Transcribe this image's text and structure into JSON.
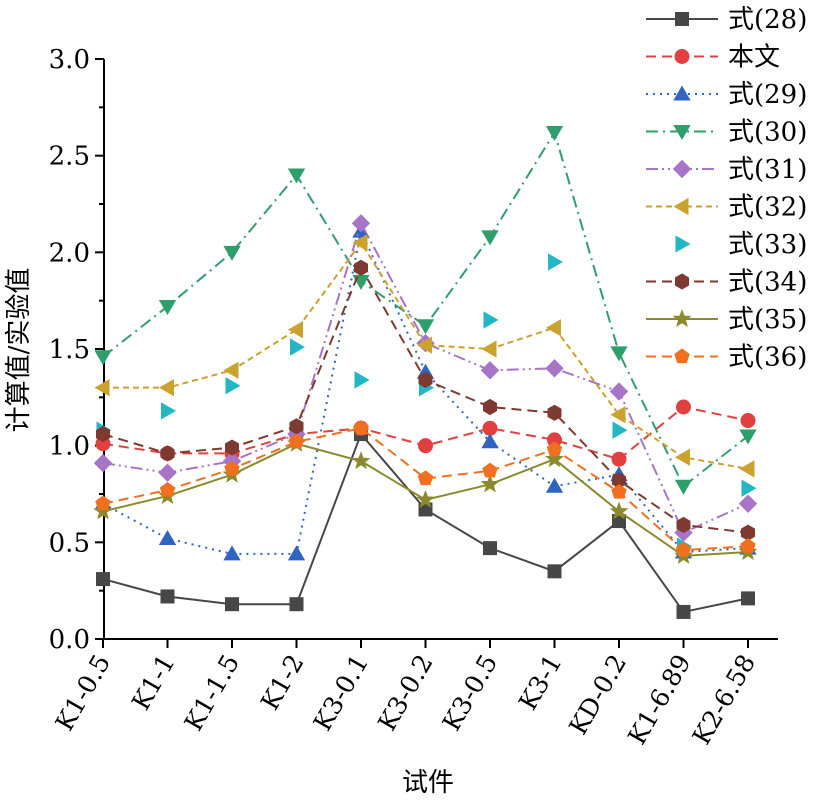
{
  "chart_data": {
    "type": "line",
    "xlabel": "试件",
    "ylabel": "计算值/实验值",
    "ylim": [
      0,
      3.0
    ],
    "yticks": [
      "0.0",
      "0.5",
      "1.0",
      "1.5",
      "2.0",
      "2.5",
      "3.0"
    ],
    "grid": false,
    "legend_position": "top-right",
    "categories": [
      "K1-0.5",
      "K1-1",
      "K1-1.5",
      "K1-2",
      "K3-0.1",
      "K3-0.2",
      "K3-0.5",
      "K3-1",
      "KD-0.2",
      "K1-6.89",
      "K2-6.58"
    ],
    "series": [
      {
        "name": "式(28)",
        "color": "#474747",
        "marker": "square",
        "line": "solid",
        "values": [
          0.31,
          0.22,
          0.18,
          0.18,
          1.06,
          0.67,
          0.47,
          0.35,
          0.61,
          0.14,
          0.21
        ]
      },
      {
        "name": "本文",
        "color": "#e04040",
        "marker": "circle",
        "line": "dash",
        "values": [
          1.01,
          0.96,
          0.96,
          1.06,
          1.09,
          1.0,
          1.09,
          1.03,
          0.93,
          1.2,
          1.13
        ]
      },
      {
        "name": "式(29)",
        "color": "#2f64c0",
        "marker": "triangle-up",
        "line": "dot",
        "values": [
          0.7,
          0.52,
          0.44,
          0.44,
          2.11,
          1.38,
          1.02,
          0.79,
          0.85,
          0.45,
          0.47
        ]
      },
      {
        "name": "式(30)",
        "color": "#2e9e6a",
        "marker": "triangle-down",
        "line": "dashdot",
        "values": [
          1.46,
          1.72,
          2.0,
          2.4,
          1.85,
          1.62,
          2.08,
          2.62,
          1.48,
          0.79,
          1.05
        ]
      },
      {
        "name": "式(31)",
        "color": "#a774c8",
        "marker": "diamond",
        "line": "dashdotdot",
        "values": [
          0.91,
          0.86,
          0.92,
          1.06,
          2.15,
          1.53,
          1.39,
          1.4,
          1.28,
          0.55,
          0.7
        ]
      },
      {
        "name": "式(32)",
        "color": "#caa22e",
        "marker": "triangle-left",
        "line": "shortdash",
        "values": [
          1.3,
          1.3,
          1.39,
          1.6,
          2.05,
          1.52,
          1.5,
          1.61,
          1.16,
          0.94,
          0.88
        ]
      },
      {
        "name": "式(33)",
        "color": "#22b7c3",
        "marker": "triangle-right",
        "line": "none",
        "values": [
          1.08,
          1.18,
          1.31,
          1.51,
          1.34,
          1.3,
          1.65,
          1.95,
          1.08,
          0.48,
          0.78
        ]
      },
      {
        "name": "式(34)",
        "color": "#7e3a30",
        "marker": "hexagon",
        "line": "dash",
        "values": [
          1.06,
          0.96,
          0.99,
          1.1,
          1.92,
          1.34,
          1.2,
          1.17,
          0.82,
          0.59,
          0.55
        ]
      },
      {
        "name": "式(35)",
        "color": "#8b8a2d",
        "marker": "star",
        "line": "solid",
        "values": [
          0.66,
          0.74,
          0.85,
          1.01,
          0.92,
          0.72,
          0.8,
          0.93,
          0.66,
          0.43,
          0.45
        ]
      },
      {
        "name": "式(36)",
        "color": "#f07020",
        "marker": "pentagon",
        "line": "dash",
        "values": [
          0.7,
          0.77,
          0.88,
          1.02,
          1.09,
          0.83,
          0.87,
          0.98,
          0.76,
          0.46,
          0.48
        ]
      }
    ]
  }
}
